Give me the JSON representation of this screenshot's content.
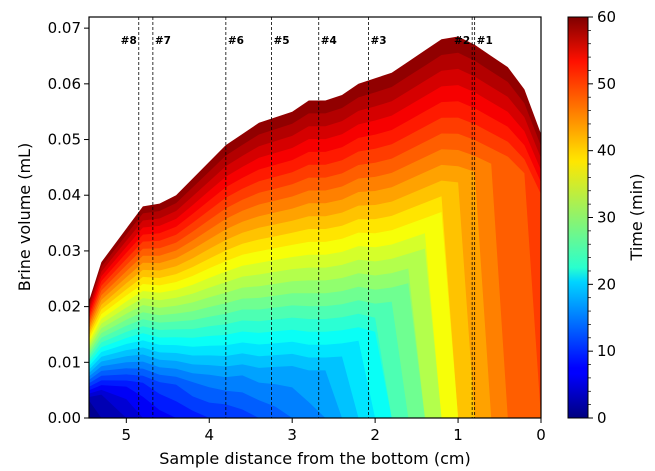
{
  "chart_data": {
    "type": "area",
    "subtype": "filled-contour",
    "xlabel": "Sample distance from the bottom (cm)",
    "ylabel": "Brine volume (mL)",
    "colorbar_label": "Time (min)",
    "x_axis_inverted": true,
    "xlim": [
      5.45,
      0
    ],
    "ylim": [
      0,
      0.072
    ],
    "clim": [
      0,
      60
    ],
    "colormap": "jet",
    "x_ticks": [
      5,
      4,
      3,
      2,
      1,
      0
    ],
    "y_ticks": [
      0.0,
      0.01,
      0.02,
      0.03,
      0.04,
      0.05,
      0.06,
      0.07
    ],
    "colorbar_ticks": [
      0,
      10,
      20,
      30,
      40,
      50,
      60
    ],
    "grid": false,
    "sample_markers": [
      {
        "label": "#8",
        "x": 4.85
      },
      {
        "label": "#7",
        "x": 4.68
      },
      {
        "label": "#6",
        "x": 3.8
      },
      {
        "label": "#5",
        "x": 3.25
      },
      {
        "label": "#4",
        "x": 2.68
      },
      {
        "label": "#3",
        "x": 2.08
      },
      {
        "label": "#2",
        "x": 0.83
      },
      {
        "label": "#1",
        "x": 0.8
      }
    ],
    "time_step_min": 2,
    "profiles": {
      "x": [
        5.45,
        5.3,
        5.0,
        4.8,
        4.6,
        4.4,
        4.2,
        4.0,
        3.8,
        3.6,
        3.4,
        3.2,
        3.0,
        2.8,
        2.6,
        2.4,
        2.2,
        2.0,
        1.8,
        1.6,
        1.4,
        1.2,
        1.0,
        0.8,
        0.6,
        0.4,
        0.2,
        0.0
      ],
      "final_volume_t60": [
        0.021,
        0.028,
        0.034,
        0.038,
        0.0385,
        0.04,
        0.043,
        0.046,
        0.049,
        0.051,
        0.053,
        0.054,
        0.055,
        0.057,
        0.057,
        0.058,
        0.06,
        0.061,
        0.062,
        0.064,
        0.066,
        0.068,
        0.0685,
        0.067,
        0.065,
        0.063,
        0.059,
        0.051
      ],
      "arrival_time_min": [
        2,
        4,
        7,
        9,
        11,
        12,
        14,
        15,
        16,
        16,
        17,
        17,
        17,
        18,
        18,
        18,
        18,
        19,
        19,
        19,
        19,
        19,
        20,
        20,
        20,
        20,
        20,
        20
      ],
      "onset_time_min": [
        1,
        2,
        4,
        6,
        7,
        8,
        9,
        10,
        10,
        11,
        12,
        13,
        14,
        15,
        17,
        19,
        21,
        23,
        26,
        29,
        32,
        36,
        40,
        43,
        45,
        46,
        47,
        48
      ]
    }
  }
}
